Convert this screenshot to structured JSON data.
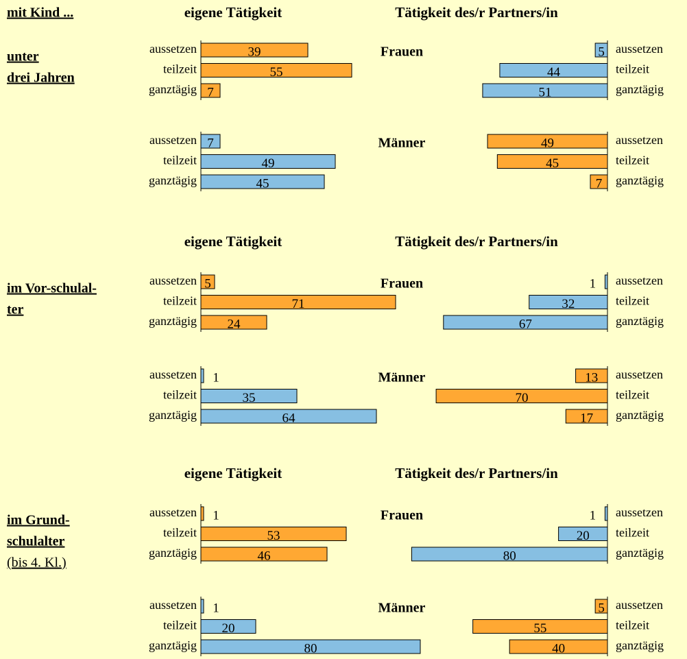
{
  "header": {
    "title": "mit Kind ..."
  },
  "sections": [
    {
      "label": [
        "unter",
        "drei Jahren"
      ],
      "columns": [
        "eigene Tätigkeit",
        "Tätigkeit des/r Partners/in"
      ],
      "groups": [
        "Frauen",
        "Männer"
      ]
    },
    {
      "label": [
        "im Vor-schulal-",
        "ter"
      ],
      "columns": [
        "eigene Tätigkeit",
        "Tätigkeit des/r Partners/in"
      ],
      "groups": [
        "Frauen",
        "Männer"
      ]
    },
    {
      "label": [
        "im Grund-",
        "schulalter",
        "(bis 4. Kl.)"
      ],
      "columns": [
        "eigene Tätigkeit",
        "Tätigkeit des/r Partners/in"
      ],
      "groups": [
        "Frauen",
        "Männer"
      ]
    }
  ],
  "chart_data": [
    {
      "type": "bar",
      "orientation": "horizontal",
      "mirrored": false,
      "categories": [
        "aussetzen",
        "teilzeit",
        "ganztägig"
      ],
      "values": [
        39,
        55,
        7
      ],
      "color": "#ffa833",
      "xlim": [
        0,
        100
      ]
    },
    {
      "type": "bar",
      "orientation": "horizontal",
      "mirrored": true,
      "categories": [
        "aussetzen",
        "teilzeit",
        "ganztägig"
      ],
      "values": [
        5,
        44,
        51
      ],
      "color": "#87bfe2",
      "xlim": [
        0,
        100
      ]
    },
    {
      "type": "bar",
      "orientation": "horizontal",
      "mirrored": false,
      "categories": [
        "aussetzen",
        "teilzeit",
        "ganztägig"
      ],
      "values": [
        7,
        49,
        45
      ],
      "color": "#87bfe2",
      "xlim": [
        0,
        100
      ]
    },
    {
      "type": "bar",
      "orientation": "horizontal",
      "mirrored": true,
      "categories": [
        "aussetzen",
        "teilzeit",
        "ganztägig"
      ],
      "values": [
        49,
        45,
        7
      ],
      "color": "#ffa833",
      "xlim": [
        0,
        100
      ]
    },
    {
      "type": "bar",
      "orientation": "horizontal",
      "mirrored": false,
      "categories": [
        "aussetzen",
        "teilzeit",
        "ganztägig"
      ],
      "values": [
        5,
        71,
        24
      ],
      "color": "#ffa833",
      "xlim": [
        0,
        100
      ]
    },
    {
      "type": "bar",
      "orientation": "horizontal",
      "mirrored": true,
      "categories": [
        "aussetzen",
        "teilzeit",
        "ganztägig"
      ],
      "values": [
        1,
        32,
        67
      ],
      "color": "#87bfe2",
      "xlim": [
        0,
        100
      ]
    },
    {
      "type": "bar",
      "orientation": "horizontal",
      "mirrored": false,
      "categories": [
        "aussetzen",
        "teilzeit",
        "ganztägig"
      ],
      "values": [
        1,
        35,
        64
      ],
      "color": "#87bfe2",
      "xlim": [
        0,
        100
      ]
    },
    {
      "type": "bar",
      "orientation": "horizontal",
      "mirrored": true,
      "categories": [
        "aussetzen",
        "teilzeit",
        "ganztägig"
      ],
      "values": [
        13,
        70,
        17
      ],
      "color": "#ffa833",
      "xlim": [
        0,
        100
      ]
    },
    {
      "type": "bar",
      "orientation": "horizontal",
      "mirrored": false,
      "categories": [
        "aussetzen",
        "teilzeit",
        "ganztägig"
      ],
      "values": [
        1,
        53,
        46
      ],
      "color": "#ffa833",
      "xlim": [
        0,
        100
      ]
    },
    {
      "type": "bar",
      "orientation": "horizontal",
      "mirrored": true,
      "categories": [
        "aussetzen",
        "teilzeit",
        "ganztägig"
      ],
      "values": [
        1,
        20,
        80
      ],
      "color": "#87bfe2",
      "xlim": [
        0,
        100
      ]
    },
    {
      "type": "bar",
      "orientation": "horizontal",
      "mirrored": false,
      "categories": [
        "aussetzen",
        "teilzeit",
        "ganztägig"
      ],
      "values": [
        1,
        20,
        80
      ],
      "color": "#87bfe2",
      "xlim": [
        0,
        100
      ]
    },
    {
      "type": "bar",
      "orientation": "horizontal",
      "mirrored": true,
      "categories": [
        "aussetzen",
        "teilzeit",
        "ganztägig"
      ],
      "values": [
        5,
        55,
        40
      ],
      "color": "#ffa833",
      "xlim": [
        0,
        100
      ]
    }
  ]
}
